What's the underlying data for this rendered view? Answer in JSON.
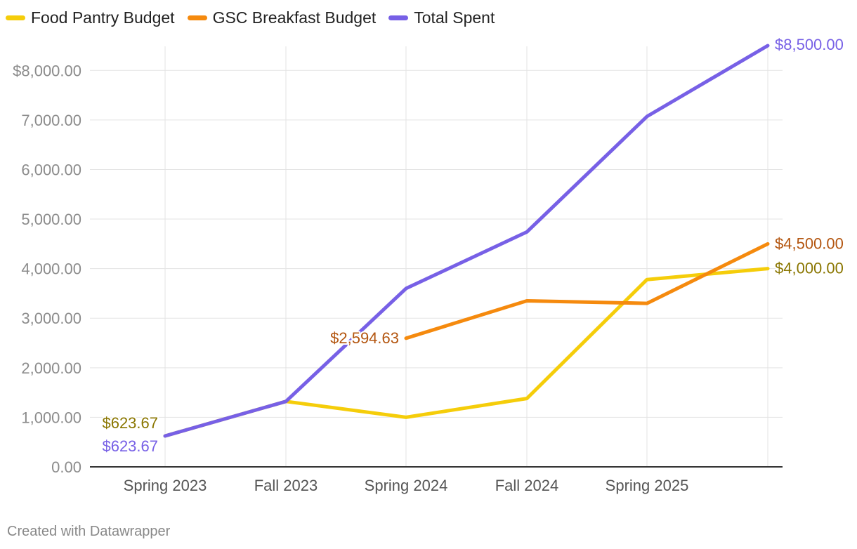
{
  "chart_data": {
    "type": "line",
    "title": "",
    "xlabel": "",
    "ylabel": "",
    "categories": [
      "Spring 2023",
      "Fall 2023",
      "Spring 2024",
      "Fall 2024",
      "Spring 2025",
      ""
    ],
    "ylim": [
      0,
      8500
    ],
    "yticks": [
      0,
      1000,
      2000,
      3000,
      4000,
      5000,
      6000,
      7000,
      8000
    ],
    "ytick_labels": [
      "0.00",
      "1,000.00",
      "2,000.00",
      "3,000.00",
      "4,000.00",
      "5,000.00",
      "6,000.00",
      "7,000.00",
      "$8,000.00"
    ],
    "grid": true,
    "legend_position": "top-left",
    "series": [
      {
        "name": "Food Pantry Budget",
        "color": "#f5cd0a",
        "label_color": "#8a7600",
        "values": [
          623.67,
          1320,
          1000,
          1380,
          3780,
          4000
        ],
        "point_labels": {
          "0": "$623.67",
          "5": "$4,000.00"
        }
      },
      {
        "name": "GSC Breakfast Budget",
        "color": "#f58a0e",
        "label_color": "#b3550f",
        "values": [
          null,
          null,
          2594.63,
          3350,
          3300,
          4500
        ],
        "point_labels": {
          "2": "$2,594.63",
          "5": "$4,500.00"
        }
      },
      {
        "name": "Total Spent",
        "color": "#7760e6",
        "label_color": "#7760e6",
        "values": [
          623.67,
          1320,
          3600,
          4740,
          7070,
          8500
        ],
        "point_labels": {
          "0": "$623.67",
          "5": "$8,500.00"
        }
      }
    ]
  },
  "footer": {
    "credit": "Created with Datawrapper"
  }
}
